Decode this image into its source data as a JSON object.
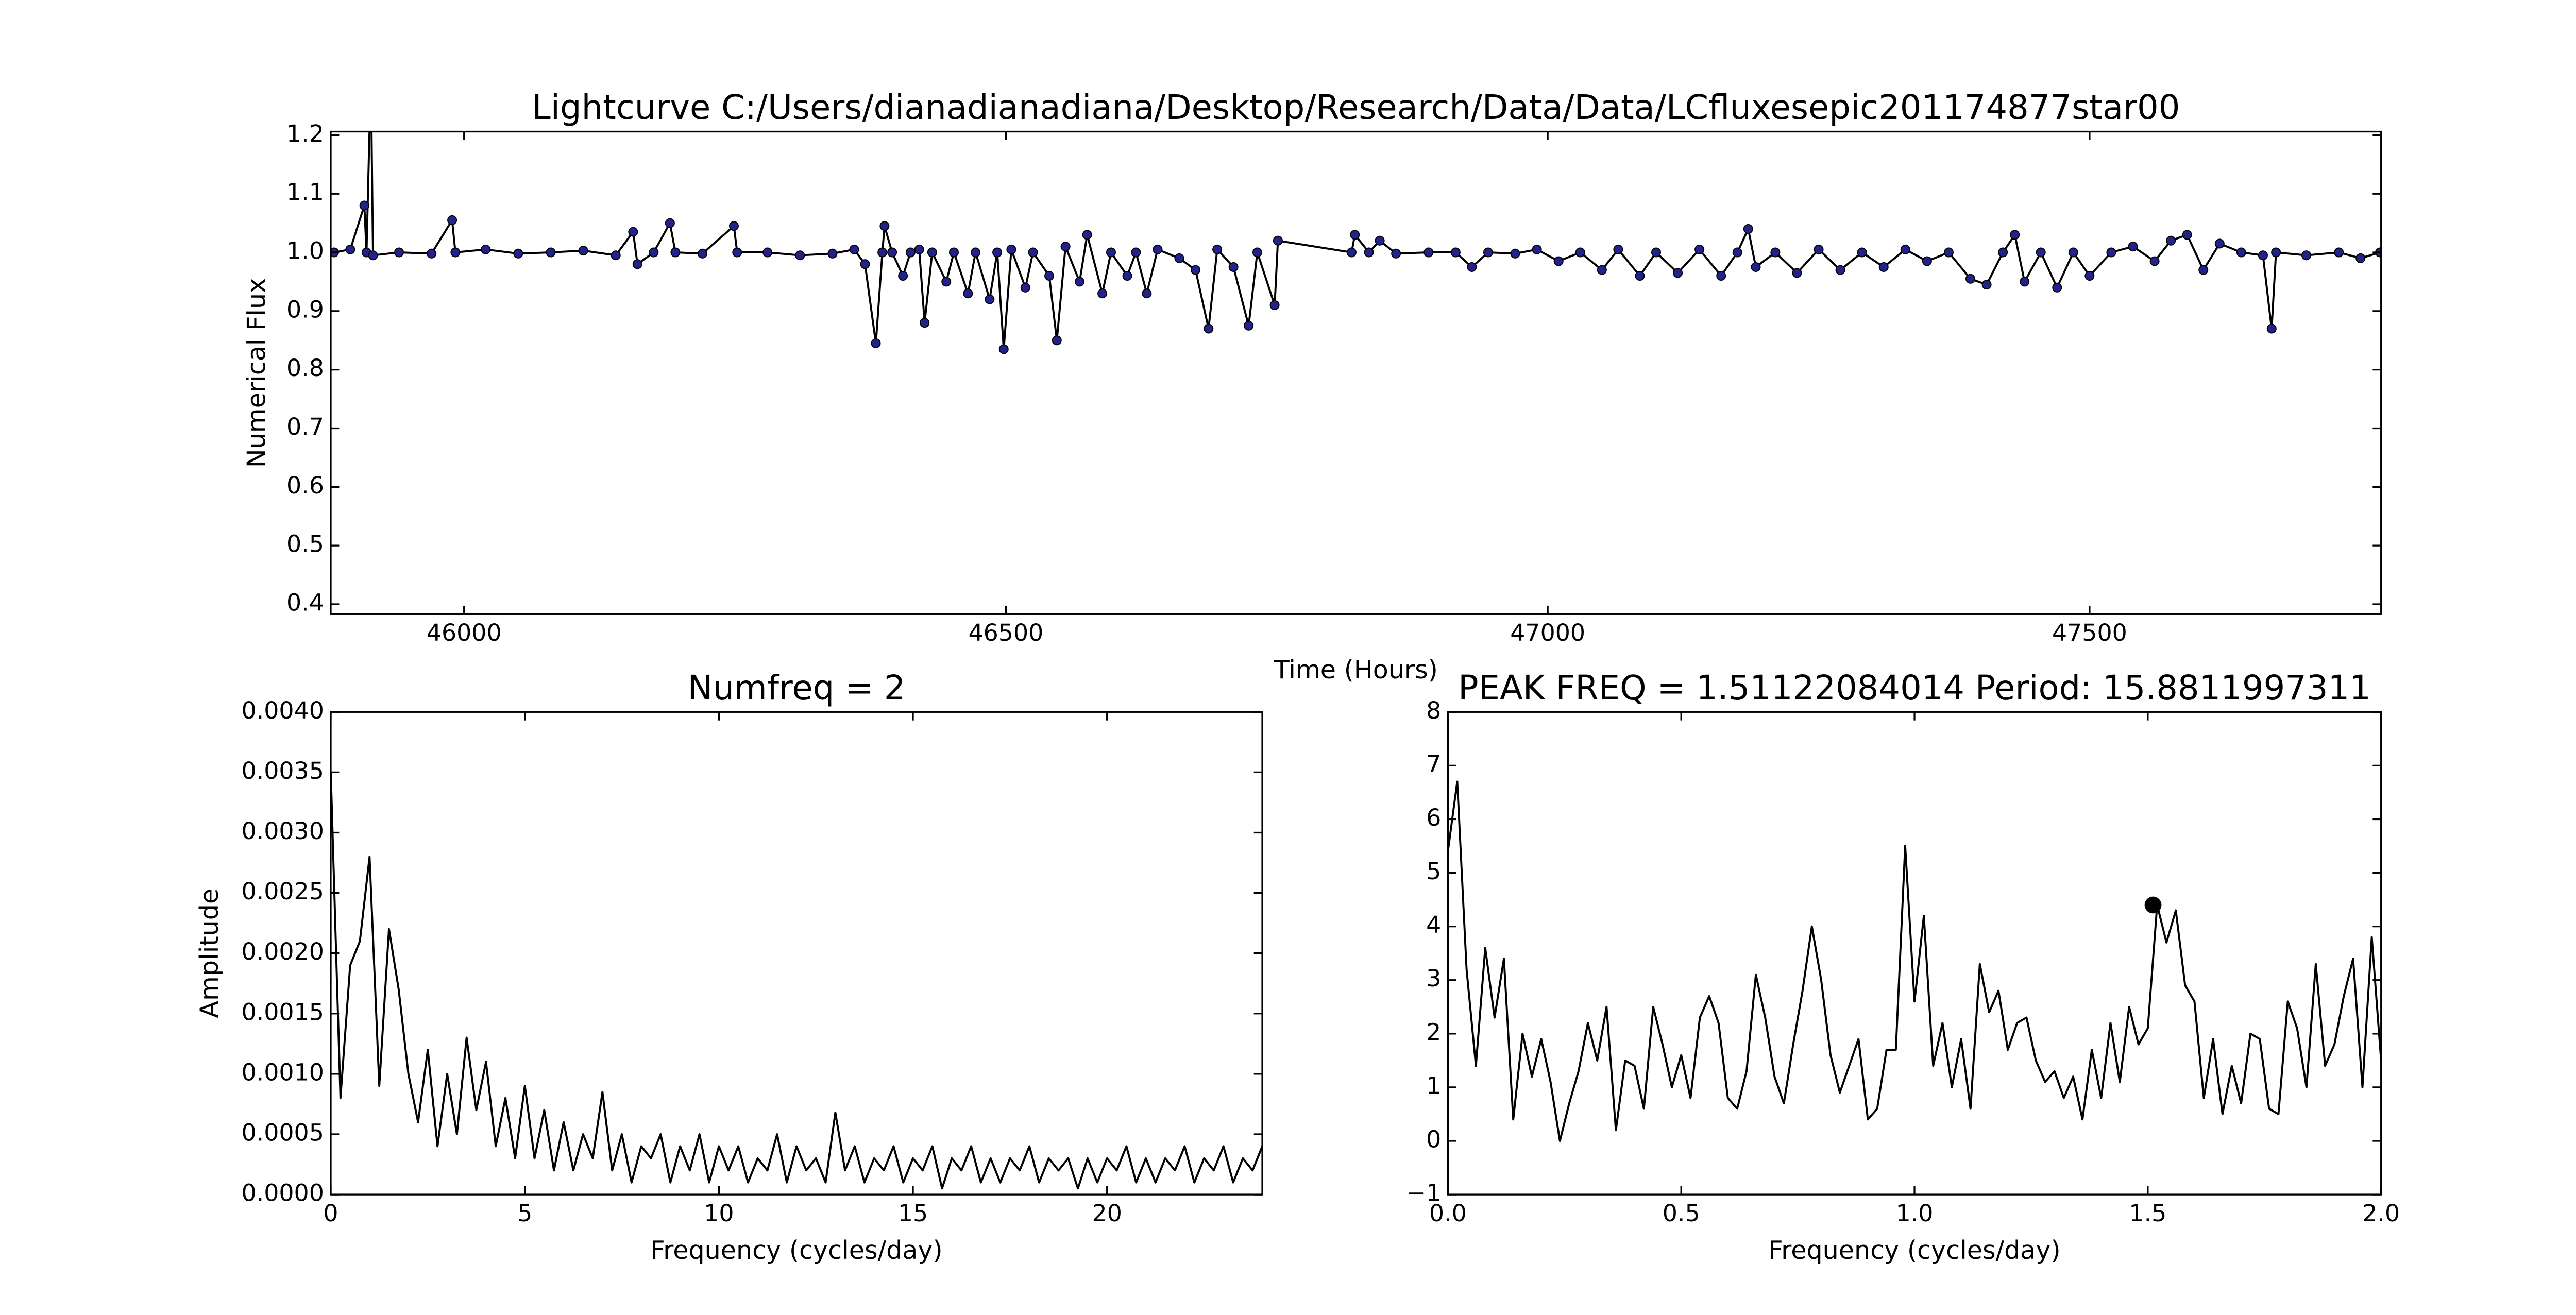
{
  "chart_data": [
    {
      "type": "line",
      "title": "Lightcurve C:/Users/dianadianadiana/Desktop/Research/Data/Data/LCfluxesepic201174877star00",
      "x_label": "Time (Hours)",
      "y_label": "Numerical Flux",
      "color": "#000000",
      "marker_color": "#22228a",
      "markers": true,
      "xlim": [
        45877,
        47769
      ],
      "ylim": [
        0.383,
        1.206
      ],
      "xticks": [
        46000,
        46500,
        47000,
        47500
      ],
      "yticks": [
        0.4,
        0.5,
        0.6,
        0.7,
        0.8,
        0.9,
        {
          "value": 1,
          "label": "1.0"
        },
        1.1,
        1.2
      ],
      "x": [
        45880,
        45895,
        45908,
        45910,
        45914,
        45916,
        45940,
        45970,
        45989,
        45992,
        46020,
        46050,
        46080,
        46110,
        46140,
        46156,
        46160,
        46175,
        46190,
        46195,
        46220,
        46249,
        46252,
        46280,
        46310,
        46340,
        46360,
        46370,
        46380,
        46386,
        46388,
        46395,
        46405,
        46412,
        46420,
        46425,
        46432,
        46445,
        46452,
        46465,
        46472,
        46485,
        46492,
        46498,
        46505,
        46518,
        46525,
        46540,
        46547,
        46555,
        46568,
        46575,
        46589,
        46597,
        46612,
        46620,
        46630,
        46640,
        46660,
        46675,
        46687,
        46695,
        46710,
        46724,
        46732,
        46748,
        46751,
        46819,
        46822,
        46835,
        46845,
        46860,
        46890,
        46915,
        46930,
        46945,
        46970,
        46990,
        47010,
        47030,
        47050,
        47065,
        47085,
        47100,
        47120,
        47140,
        47160,
        47175,
        47185,
        47192,
        47210,
        47230,
        47250,
        47270,
        47290,
        47310,
        47330,
        47350,
        47370,
        47390,
        47405,
        47420,
        47431,
        47440,
        47455,
        47470,
        47485,
        47500,
        47520,
        47540,
        47560,
        47575,
        47590,
        47605,
        47620,
        47640,
        47660,
        47668,
        47672,
        47700,
        47730,
        47750,
        47768
      ],
      "values": [
        1.0,
        1.005,
        1.08,
        1.0,
        1.3,
        0.995,
        1.0,
        0.998,
        1.055,
        1.0,
        1.005,
        0.998,
        1.0,
        1.003,
        0.995,
        1.035,
        0.98,
        1.0,
        1.05,
        1.0,
        0.998,
        1.045,
        1.0,
        1.0,
        0.995,
        0.998,
        1.005,
        0.98,
        0.845,
        1.0,
        1.045,
        1.0,
        0.96,
        1.0,
        1.005,
        0.88,
        1.0,
        0.95,
        1.0,
        0.93,
        1.0,
        0.92,
        1.0,
        0.835,
        1.005,
        0.94,
        1.0,
        0.96,
        0.85,
        1.01,
        0.95,
        1.03,
        0.93,
        1.0,
        0.96,
        1.0,
        0.93,
        1.005,
        0.99,
        0.97,
        0.87,
        1.005,
        0.975,
        0.875,
        1.0,
        0.91,
        1.02,
        1.0,
        1.03,
        1.0,
        1.02,
        0.998,
        1.0,
        1.0,
        0.975,
        1.0,
        0.998,
        1.005,
        0.985,
        1.0,
        0.97,
        1.005,
        0.96,
        1.0,
        0.965,
        1.005,
        0.96,
        1.0,
        1.04,
        0.975,
        1.0,
        0.965,
        1.005,
        0.97,
        1.0,
        0.975,
        1.005,
        0.985,
        1.0,
        0.955,
        0.945,
        1.0,
        1.03,
        0.95,
        1.0,
        0.94,
        1.0,
        0.96,
        1.0,
        1.01,
        0.985,
        1.02,
        1.03,
        0.97,
        1.015,
        1.0,
        0.995,
        0.87,
        1.0,
        0.995,
        1.0,
        0.99,
        1.0
      ]
    },
    {
      "type": "line",
      "title": "Numfreq = 2",
      "x_label": "Frequency (cycles/day)",
      "y_label": "Amplitude",
      "color": "#000000",
      "markers": false,
      "xlim": [
        0,
        24
      ],
      "ylim": [
        0,
        0.004
      ],
      "xticks": [
        0,
        5,
        10,
        15,
        20
      ],
      "yticks": [
        {
          "value": 0,
          "label": "0.0000"
        },
        {
          "value": 0.0005,
          "label": "0.0005"
        },
        {
          "value": 0.001,
          "label": "0.0010"
        },
        {
          "value": 0.0015,
          "label": "0.0015"
        },
        {
          "value": 0.002,
          "label": "0.0020"
        },
        {
          "value": 0.0025,
          "label": "0.0025"
        },
        {
          "value": 0.003,
          "label": "0.0030"
        },
        {
          "value": 0.0035,
          "label": "0.0035"
        },
        {
          "value": 0.004,
          "label": "0.0040"
        }
      ],
      "x": [
        0,
        0.25,
        0.5,
        0.75,
        1,
        1.25,
        1.5,
        1.75,
        2,
        2.25,
        2.5,
        2.75,
        3,
        3.25,
        3.5,
        3.75,
        4,
        4.25,
        4.5,
        4.75,
        5,
        5.25,
        5.5,
        5.75,
        6,
        6.25,
        6.5,
        6.75,
        7,
        7.25,
        7.5,
        7.75,
        8,
        8.25,
        8.5,
        8.75,
        9,
        9.25,
        9.5,
        9.75,
        10,
        10.25,
        10.5,
        10.75,
        11,
        11.25,
        11.5,
        11.75,
        12,
        12.25,
        12.5,
        12.75,
        13,
        13.25,
        13.5,
        13.75,
        14,
        14.25,
        14.5,
        14.75,
        15,
        15.25,
        15.5,
        15.75,
        16,
        16.25,
        16.5,
        16.75,
        17,
        17.25,
        17.5,
        17.75,
        18,
        18.25,
        18.5,
        18.75,
        19,
        19.25,
        19.5,
        19.75,
        20,
        20.25,
        20.5,
        20.75,
        21,
        21.25,
        21.5,
        21.75,
        22,
        22.25,
        22.5,
        22.75,
        23,
        23.25,
        23.5,
        23.75,
        24
      ],
      "values": [
        0.0035,
        0.0008,
        0.0019,
        0.0021,
        0.0028,
        0.0009,
        0.0022,
        0.0017,
        0.001,
        0.0006,
        0.0012,
        0.0004,
        0.001,
        0.0005,
        0.0013,
        0.0007,
        0.0011,
        0.0004,
        0.0008,
        0.0003,
        0.0009,
        0.0003,
        0.0007,
        0.0002,
        0.0006,
        0.0002,
        0.0005,
        0.0003,
        0.00085,
        0.0002,
        0.0005,
        0.0001,
        0.0004,
        0.0003,
        0.0005,
        0.0001,
        0.0004,
        0.0002,
        0.0005,
        0.0001,
        0.0004,
        0.0002,
        0.0004,
        0.0001,
        0.0003,
        0.0002,
        0.0005,
        0.0001,
        0.0004,
        0.0002,
        0.0003,
        0.0001,
        0.00068,
        0.0002,
        0.0004,
        0.0001,
        0.0003,
        0.0002,
        0.0004,
        0.0001,
        0.0003,
        0.0002,
        0.0004,
        5e-05,
        0.0003,
        0.0002,
        0.0004,
        0.0001,
        0.0003,
        0.0001,
        0.0003,
        0.0002,
        0.0004,
        0.0001,
        0.0003,
        0.0002,
        0.0003,
        5e-05,
        0.0003,
        0.0001,
        0.0003,
        0.0002,
        0.0004,
        0.0001,
        0.0003,
        0.0001,
        0.0003,
        0.0002,
        0.0004,
        0.0001,
        0.0003,
        0.0002,
        0.0004,
        0.0001,
        0.0003,
        0.0002,
        0.0004
      ]
    },
    {
      "type": "line",
      "title": "PEAK FREQ = 1.51122084014 Period: 15.8811997311",
      "x_label": "Frequency (cycles/day)",
      "color": "#000000",
      "markers": false,
      "xlim": [
        0,
        2
      ],
      "ylim": [
        -1,
        8
      ],
      "xticks": [
        {
          "value": 0,
          "label": "0.0"
        },
        0.5,
        {
          "value": 1,
          "label": "1.0"
        },
        1.5,
        {
          "value": 2,
          "label": "2.0"
        }
      ],
      "yticks": [
        {
          "value": -1,
          "label": "−1"
        },
        0,
        1,
        2,
        3,
        4,
        5,
        6,
        7,
        8
      ],
      "x": [
        0,
        0.02,
        0.04,
        0.06,
        0.08,
        0.1,
        0.12,
        0.14,
        0.16,
        0.18,
        0.2,
        0.22,
        0.24,
        0.26,
        0.28,
        0.3,
        0.32,
        0.34,
        0.36,
        0.38,
        0.4,
        0.42,
        0.44,
        0.46,
        0.48,
        0.5,
        0.52,
        0.54,
        0.56,
        0.58,
        0.6,
        0.62,
        0.64,
        0.66,
        0.68,
        0.7,
        0.72,
        0.74,
        0.76,
        0.78,
        0.8,
        0.82,
        0.84,
        0.86,
        0.88,
        0.9,
        0.92,
        0.94,
        0.96,
        0.98,
        1,
        1.02,
        1.04,
        1.06,
        1.08,
        1.1,
        1.12,
        1.14,
        1.16,
        1.18,
        1.2,
        1.22,
        1.24,
        1.26,
        1.28,
        1.3,
        1.32,
        1.34,
        1.36,
        1.38,
        1.4,
        1.42,
        1.44,
        1.46,
        1.48,
        1.5,
        1.52,
        1.54,
        1.56,
        1.58,
        1.6,
        1.62,
        1.64,
        1.66,
        1.68,
        1.7,
        1.72,
        1.74,
        1.76,
        1.78,
        1.8,
        1.82,
        1.84,
        1.86,
        1.88,
        1.9,
        1.92,
        1.94,
        1.96,
        1.98,
        2
      ],
      "values": [
        5.4,
        6.7,
        3.2,
        1.4,
        3.6,
        2.3,
        3.4,
        0.4,
        2.0,
        1.2,
        1.9,
        1.1,
        0.0,
        0.7,
        1.3,
        2.2,
        1.5,
        2.5,
        0.2,
        1.5,
        1.4,
        0.6,
        2.5,
        1.8,
        1.0,
        1.6,
        0.8,
        2.3,
        2.7,
        2.2,
        0.8,
        0.6,
        1.3,
        3.1,
        2.3,
        1.2,
        0.7,
        1.8,
        2.8,
        4.0,
        3.0,
        1.6,
        0.9,
        1.4,
        1.9,
        0.4,
        0.6,
        1.7,
        1.7,
        5.5,
        2.6,
        4.2,
        1.4,
        2.2,
        1.0,
        1.9,
        0.6,
        3.3,
        2.4,
        2.8,
        1.7,
        2.2,
        2.3,
        1.5,
        1.1,
        1.3,
        0.8,
        1.2,
        0.4,
        1.7,
        0.8,
        2.2,
        1.1,
        2.5,
        1.8,
        2.1,
        4.4,
        3.7,
        4.3,
        2.9,
        2.6,
        0.8,
        1.9,
        0.5,
        1.4,
        0.7,
        2.0,
        1.9,
        0.6,
        0.5,
        2.6,
        2.1,
        1.0,
        3.3,
        1.4,
        1.8,
        2.7,
        3.4,
        1.0,
        3.8,
        1.5
      ],
      "peak": {
        "x": 1.51122084014,
        "y": 4.4
      }
    }
  ]
}
